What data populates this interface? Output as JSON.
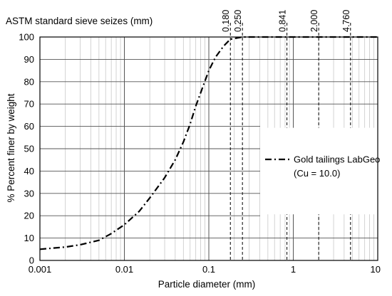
{
  "chart_data": {
    "type": "line",
    "title": "",
    "top_axis_title": "ASTM standard sieve seizes (mm)",
    "xlabel": "Particle diameter (mm)",
    "ylabel": "% Percent finer by weight",
    "xscale": "log",
    "xlim": [
      0.001,
      10
    ],
    "ylim": [
      0,
      100
    ],
    "x_ticks": [
      0.001,
      0.01,
      0.1,
      1,
      10
    ],
    "x_tick_labels": [
      "0.001",
      "0.01",
      "0.1",
      "1",
      "10"
    ],
    "y_ticks": [
      0,
      10,
      20,
      30,
      40,
      50,
      60,
      70,
      80,
      90,
      100
    ],
    "y_tick_labels": [
      "0",
      "10",
      "20",
      "30",
      "40",
      "50",
      "60",
      "70",
      "80",
      "90",
      "100"
    ],
    "grid": "major and minor (log decades), horizontal every 10",
    "sieve_sizes": [
      0.18,
      0.25,
      0.841,
      2.0,
      4.76
    ],
    "sieve_labels": [
      "0.180",
      "0.250",
      "0.841",
      "2.000",
      "4.760"
    ],
    "legend": {
      "placement": "right",
      "entries": [
        {
          "label": "Gold tailings LabGeo",
          "sublabel": "(Cu = 10.0)",
          "line_style": "dash-dot",
          "color": "#000000"
        }
      ]
    },
    "series": [
      {
        "name": "Gold tailings LabGeo",
        "x": [
          0.001,
          0.002,
          0.003,
          0.005,
          0.007,
          0.01,
          0.015,
          0.02,
          0.03,
          0.04,
          0.05,
          0.06,
          0.07,
          0.08,
          0.1,
          0.12,
          0.15,
          0.18,
          0.25,
          0.841,
          2.0,
          4.76,
          10
        ],
        "y": [
          5,
          6,
          7,
          9,
          12,
          16,
          22,
          28,
          37,
          45,
          53,
          61,
          69,
          75,
          85,
          91,
          96,
          99,
          100,
          100,
          100,
          100,
          100
        ]
      }
    ]
  }
}
